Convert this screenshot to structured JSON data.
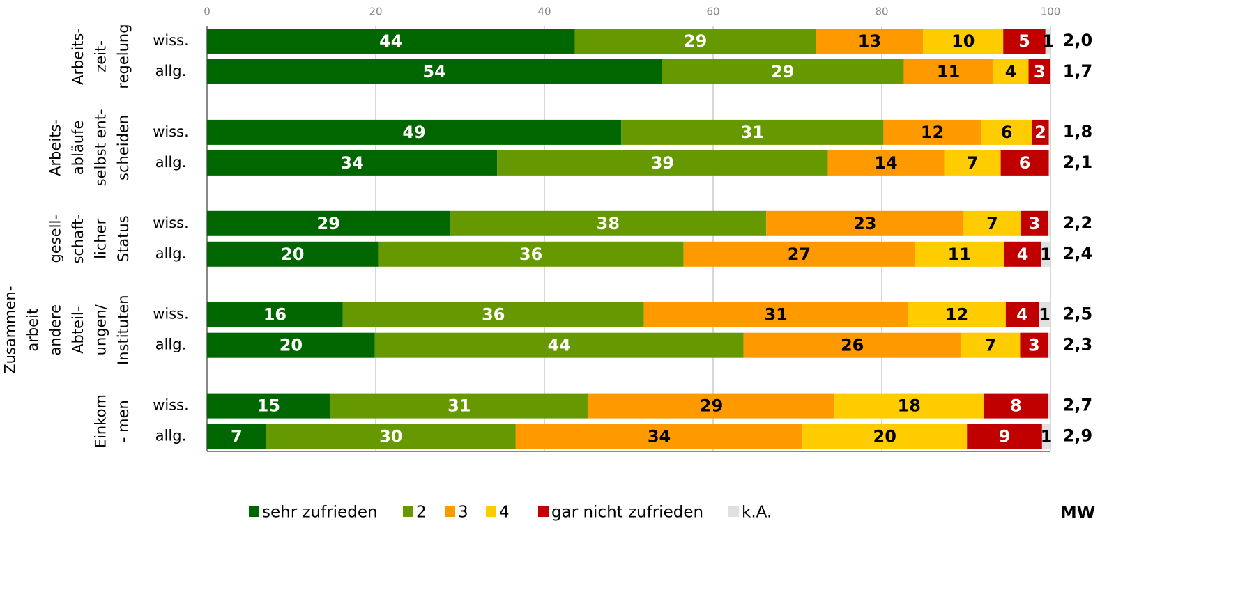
{
  "chart_data": {
    "type": "stacked_barh",
    "xlim": [
      0,
      100
    ],
    "xticks": [
      0,
      20,
      40,
      60,
      80,
      100
    ],
    "grid": true,
    "categories": [
      "wiss.",
      "allg.",
      "wiss.",
      "allg.",
      "wiss.",
      "allg.",
      "wiss.",
      "allg.",
      "wiss.",
      "allg."
    ],
    "groups": [
      {
        "label": [
          "Arbeits-",
          "zeit-",
          "regelung"
        ]
      },
      {
        "label": [
          "Arbeits-",
          "abläufe",
          "selbst ent-",
          "scheiden"
        ]
      },
      {
        "label": [
          "gesell-",
          "schaft-",
          "licher",
          "Status"
        ]
      },
      {
        "label": [
          "Zusammen-",
          "arbeit",
          "andere",
          "Abteil-",
          "ungen/",
          "Instituten"
        ]
      },
      {
        "label": [
          "Einkom",
          "- men"
        ]
      }
    ],
    "series": [
      {
        "name": "sehr zufrieden",
        "color": "#006600",
        "label_color": "#ffffff",
        "values": [
          43.6,
          53.9,
          49.1,
          34.4,
          28.8,
          20.3,
          16.1,
          19.9,
          14.6,
          7.0
        ],
        "value_labels": [
          "44",
          "54",
          "49",
          "34",
          "29",
          "20",
          "16",
          "20",
          "15",
          "7"
        ]
      },
      {
        "name": "2",
        "color": "#669900",
        "label_color": "#ffffff",
        "values": [
          28.6,
          28.7,
          31.1,
          39.2,
          37.5,
          36.2,
          35.7,
          43.7,
          30.6,
          29.6
        ],
        "value_labels": [
          "29",
          "29",
          "31",
          "39",
          "38",
          "36",
          "36",
          "44",
          "31",
          "30"
        ]
      },
      {
        "name": "3",
        "color": "#ff9900",
        "label_color": "#000000",
        "values": [
          12.7,
          10.6,
          11.6,
          13.8,
          23.4,
          27.4,
          31.3,
          25.8,
          29.2,
          34.0
        ],
        "value_labels": [
          "13",
          "11",
          "12",
          "14",
          "23",
          "27",
          "31",
          "26",
          "29",
          "34"
        ]
      },
      {
        "name": "4",
        "color": "#ffcc00",
        "label_color": "#000000",
        "values": [
          9.5,
          4.2,
          6.0,
          6.7,
          6.8,
          10.6,
          11.6,
          7.0,
          17.7,
          19.5
        ],
        "value_labels": [
          "10",
          "4",
          "6",
          "7",
          "7",
          "11",
          "12",
          "7",
          "18",
          "20"
        ]
      },
      {
        "name": "gar nicht zufrieden",
        "color": "#c00000",
        "label_color": "#ffffff",
        "values": [
          5.0,
          2.6,
          2.0,
          5.7,
          3.2,
          4.4,
          3.9,
          3.3,
          7.6,
          8.9
        ],
        "value_labels": [
          "5",
          "3",
          "2",
          "6",
          "3",
          "4",
          "4",
          "3",
          "8",
          "9"
        ]
      },
      {
        "name": "k.A.",
        "color": "#e0e0e0",
        "label_color": "#000000",
        "values": [
          0.6,
          0,
          0.2,
          0.2,
          0.3,
          1.1,
          1.4,
          0.3,
          0.3,
          1.0
        ],
        "value_labels": [
          "1",
          null,
          null,
          null,
          null,
          "1",
          "1",
          null,
          null,
          "1"
        ]
      }
    ],
    "mw_title": "MW",
    "mw_labels": [
      "2,0",
      "1,7",
      "1,8",
      "2,1",
      "2,2",
      "2,4",
      "2,5",
      "2,3",
      "2,7",
      "2,9"
    ]
  }
}
